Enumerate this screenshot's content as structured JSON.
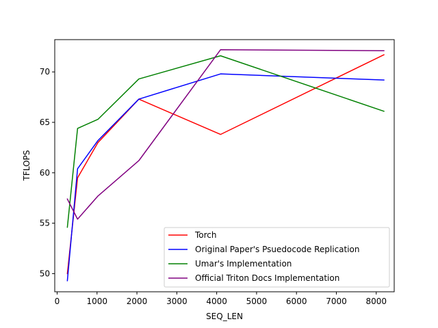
{
  "chart_data": {
    "type": "line",
    "title": "",
    "xlabel": "SEQ_LEN",
    "ylabel": "TFLOPS",
    "xlim": [
      -60,
      8450
    ],
    "ylim": [
      48.2,
      73.2
    ],
    "xticks": [
      0,
      1000,
      2000,
      3000,
      4000,
      5000,
      6000,
      7000,
      8000
    ],
    "yticks": [
      50,
      55,
      60,
      65,
      70
    ],
    "grid": false,
    "legend_position": "lower-right",
    "x": [
      256,
      512,
      1024,
      2048,
      4096,
      8192
    ],
    "series": [
      {
        "name": "Torch",
        "color": "#ff0000",
        "values": [
          50.0,
          59.5,
          63.0,
          67.3,
          63.8,
          71.7
        ]
      },
      {
        "name": "Original Paper's Psuedocode Replication",
        "color": "#0000ff",
        "values": [
          49.3,
          60.4,
          63.2,
          67.3,
          69.8,
          69.2
        ]
      },
      {
        "name": "Umar's Implementation",
        "color": "#008000",
        "values": [
          54.6,
          64.4,
          65.3,
          69.3,
          71.6,
          66.1
        ]
      },
      {
        "name": "Official Triton Docs Implementation",
        "color": "#800080",
        "values": [
          57.4,
          55.4,
          57.7,
          61.2,
          72.2,
          72.1
        ]
      }
    ]
  }
}
